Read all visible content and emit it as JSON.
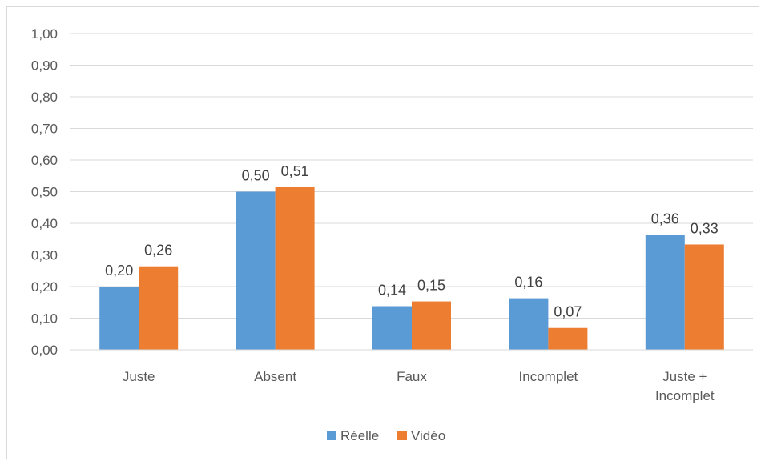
{
  "chart_data": {
    "type": "bar",
    "title": "",
    "xlabel": "",
    "ylabel": "",
    "ylim": [
      0,
      1.0
    ],
    "y_ticks": [
      "0,00",
      "0,10",
      "0,20",
      "0,30",
      "0,40",
      "0,50",
      "0,60",
      "0,70",
      "0,80",
      "0,90",
      "1,00"
    ],
    "grid": true,
    "legend_position": "bottom",
    "categories": [
      [
        "Juste"
      ],
      [
        "Absent"
      ],
      [
        "Faux"
      ],
      [
        "Incomplet"
      ],
      [
        "Juste +",
        "Incomplet"
      ]
    ],
    "series": [
      {
        "name": "Réelle",
        "color": "#5B9BD5",
        "values": [
          0.2,
          0.5,
          0.138,
          0.163,
          0.363
        ],
        "labels": [
          "0,20",
          "0,50",
          "0,14",
          "0,16",
          "0,36"
        ]
      },
      {
        "name": "Vidéo",
        "color": "#ED7D31",
        "values": [
          0.264,
          0.514,
          0.153,
          0.069,
          0.333
        ],
        "labels": [
          "0,26",
          "0,51",
          "0,15",
          "0,07",
          "0,33"
        ]
      }
    ]
  }
}
